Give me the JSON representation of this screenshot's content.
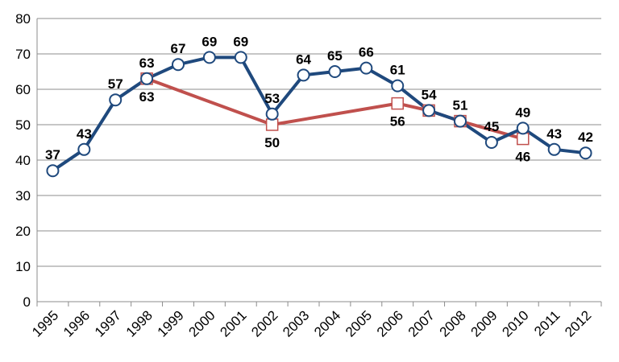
{
  "chart_data": {
    "type": "line",
    "title": "",
    "xlabel": "",
    "ylabel": "",
    "ylim": [
      0,
      80
    ],
    "yticks": [
      0,
      10,
      20,
      30,
      40,
      50,
      60,
      70,
      80
    ],
    "grid": "horizontal",
    "categories": [
      "1995",
      "1996",
      "1997",
      "1998",
      "1999",
      "2000",
      "2001",
      "2002",
      "2003",
      "2004",
      "2005",
      "2006",
      "2007",
      "2008",
      "2009",
      "2010",
      "2011",
      "2012"
    ],
    "series": [
      {
        "color": "#1F497D",
        "marker": "circle",
        "values": [
          37,
          43,
          57,
          63,
          67,
          69,
          69,
          53,
          64,
          65,
          66,
          61,
          54,
          51,
          45,
          49,
          43,
          42
        ]
      },
      {
        "color": "#C0504D",
        "marker": "square",
        "values": [
          null,
          null,
          null,
          63,
          null,
          null,
          null,
          50,
          null,
          null,
          null,
          56,
          54,
          51,
          null,
          46,
          null,
          null
        ]
      }
    ]
  }
}
